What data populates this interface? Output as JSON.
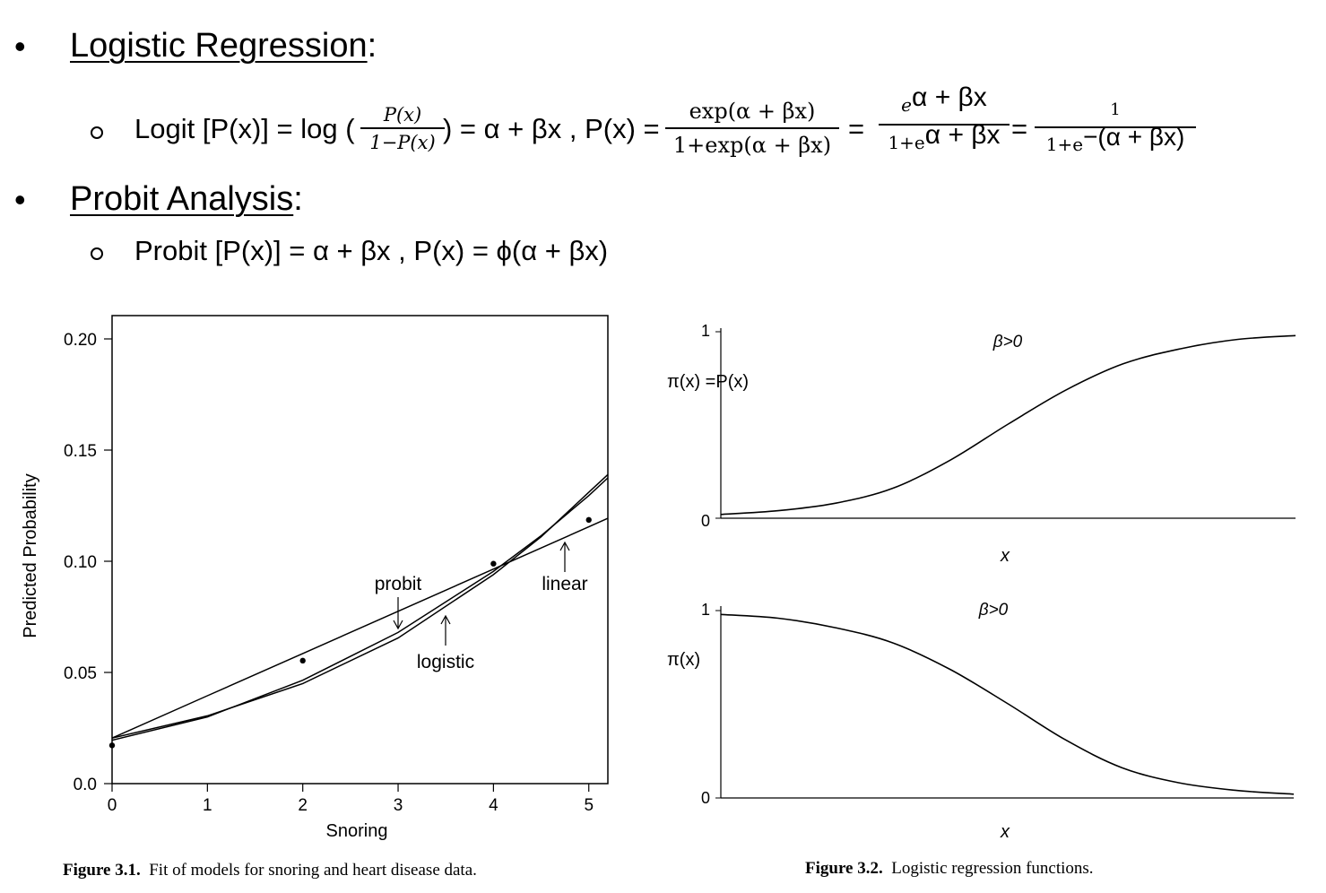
{
  "section_logistic": {
    "bullet": "•",
    "title": "Logistic Regression",
    "colon": ":",
    "formula_lhs": "Logit [P(x)] = log (",
    "frac1_num": "P(x)",
    "frac1_den": "1−P(x)",
    "formula_mid": ") = α + βx , P(x) =",
    "frac2_num": "exp(α + βx)",
    "frac2_den": "1+exp(α + βx)",
    "eq1": "=",
    "frac3_num_e": "e",
    "frac3_num_exp": "α + βx",
    "frac3_den_a": "1+e",
    "frac3_den_exp": "α + βx",
    "eq2": "=",
    "frac4_num": "1",
    "frac4_den_a": "1+e",
    "frac4_den_exp": "−(α + βx)"
  },
  "section_probit": {
    "bullet": "•",
    "title": "Probit Analysis",
    "colon": ":",
    "formula": "Probit [P(x)] = α + βx  , P(x) = ϕ(α + βx)"
  },
  "chart_data": [
    {
      "type": "line",
      "xlabel": "Snoring",
      "ylabel": "Predicted Probability",
      "xlim": [
        0,
        5.2
      ],
      "ylim": [
        0.0,
        0.2
      ],
      "x_ticks": [
        "0",
        "1",
        "2",
        "3",
        "4",
        "5"
      ],
      "y_ticks": [
        "0.0",
        "0.05",
        "0.10",
        "0.15",
        "0.20"
      ],
      "points": [
        [
          0,
          0.0172
        ],
        [
          2,
          0.0553
        ],
        [
          4,
          0.0989
        ],
        [
          5,
          0.1186
        ]
      ],
      "series": [
        {
          "name": "linear",
          "x": [
            0,
            1,
            2,
            3,
            4,
            5,
            5.2
          ],
          "y": [
            0.0205,
            0.0395,
            0.0585,
            0.0775,
            0.0965,
            0.1155,
            0.1193
          ]
        },
        {
          "name": "logistic",
          "x": [
            0,
            1,
            2,
            3,
            4,
            4.5,
            5,
            5.2
          ],
          "y": [
            0.0205,
            0.0305,
            0.045,
            0.0655,
            0.094,
            0.111,
            0.131,
            0.139
          ]
        },
        {
          "name": "probit",
          "x": [
            0,
            1,
            2,
            3,
            4,
            4.5,
            5,
            5.2
          ],
          "y": [
            0.0195,
            0.03,
            0.0465,
            0.068,
            0.0955,
            0.1115,
            0.1295,
            0.1375
          ]
        }
      ],
      "annotations": [
        "probit",
        "logistic",
        "linear"
      ],
      "caption_label": "Figure 3.1.",
      "caption_text": "Fit of models for snoring and heart disease data."
    },
    {
      "type": "line",
      "panels": [
        {
          "ylabel": "π(x) =P(x)",
          "y_ticks": [
            "0",
            "1"
          ],
          "xlabel": "x",
          "annotation": "β>0",
          "series": [
            {
              "x": [
                0,
                0.1,
                0.2,
                0.3,
                0.4,
                0.5,
                0.6,
                0.7,
                0.8,
                0.9,
                1.0
              ],
              "y": [
                0.02,
                0.04,
                0.08,
                0.16,
                0.31,
                0.5,
                0.68,
                0.82,
                0.9,
                0.95,
                0.97
              ]
            }
          ]
        },
        {
          "ylabel": "π(x)",
          "y_ticks": [
            "0",
            "1"
          ],
          "xlabel": "x",
          "annotation": "β>0",
          "series": [
            {
              "x": [
                0,
                0.1,
                0.2,
                0.3,
                0.4,
                0.5,
                0.6,
                0.7,
                0.8,
                0.9,
                1.0
              ],
              "y": [
                0.97,
                0.95,
                0.9,
                0.82,
                0.68,
                0.5,
                0.31,
                0.16,
                0.08,
                0.04,
                0.02
              ]
            }
          ]
        }
      ],
      "caption_label": "Figure 3.2.",
      "caption_text": "Logistic regression functions."
    }
  ]
}
